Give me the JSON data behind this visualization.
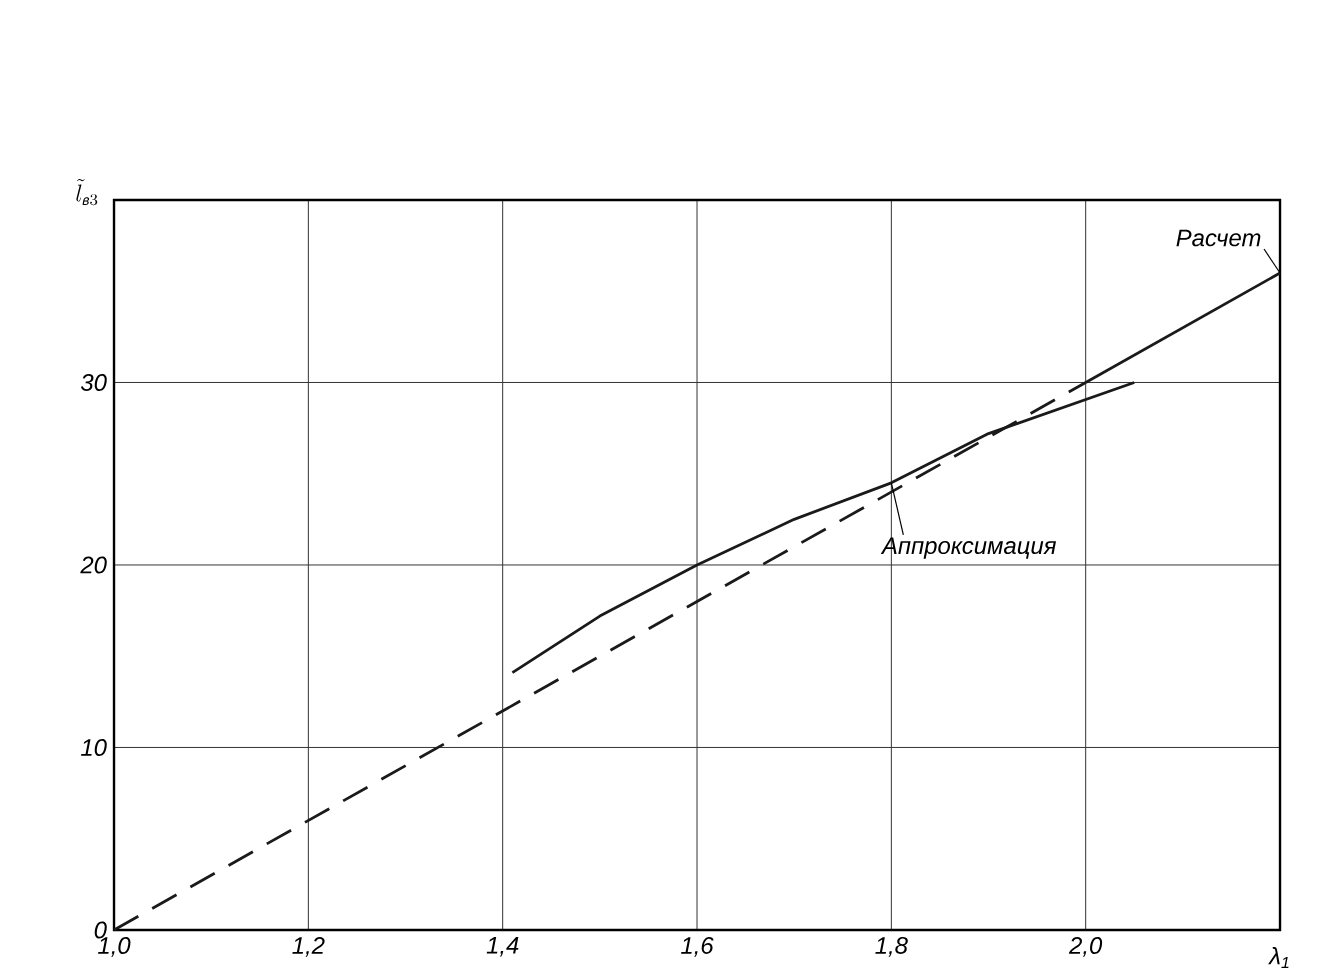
{
  "chart_data": {
    "type": "line",
    "xlabel": "λ$_{1}$",
    "ylabel": "\\tilde{l}_{\\mbox{\\scriptsize в}3}",
    "xlim": [
      1.0,
      2.2
    ],
    "ylim": [
      0,
      40
    ],
    "xticks": [
      {
        "value": 1.0,
        "label": "1,0"
      },
      {
        "value": 1.2,
        "label": "1,2"
      },
      {
        "value": 1.4,
        "label": "1,4"
      },
      {
        "value": 1.6,
        "label": "1,6"
      },
      {
        "value": 1.8,
        "label": "1,8"
      },
      {
        "value": 2.0,
        "label": "2,0"
      }
    ],
    "yticks": [
      0,
      10,
      20,
      30
    ],
    "grid": true,
    "legend": false,
    "series": [
      {
        "color": "#1a1a1a",
        "line_style": "dashed",
        "x": [
          1.0,
          2.0
        ],
        "values": [
          0,
          30
        ]
      },
      {
        "name": "Расчет",
        "color": "#1a1a1a",
        "line_style": "solid",
        "x": [
          2.0,
          2.2
        ],
        "values": [
          30,
          36
        ]
      },
      {
        "name": "Аппроксимация",
        "color": "#1a1a1a",
        "line_style": "solid",
        "x": [
          1.41,
          1.5,
          1.6,
          1.7,
          1.8,
          1.9,
          2.05
        ],
        "values": [
          14.1,
          17.2,
          20,
          22.5,
          24.5,
          27.2,
          30
        ]
      }
    ]
  }
}
